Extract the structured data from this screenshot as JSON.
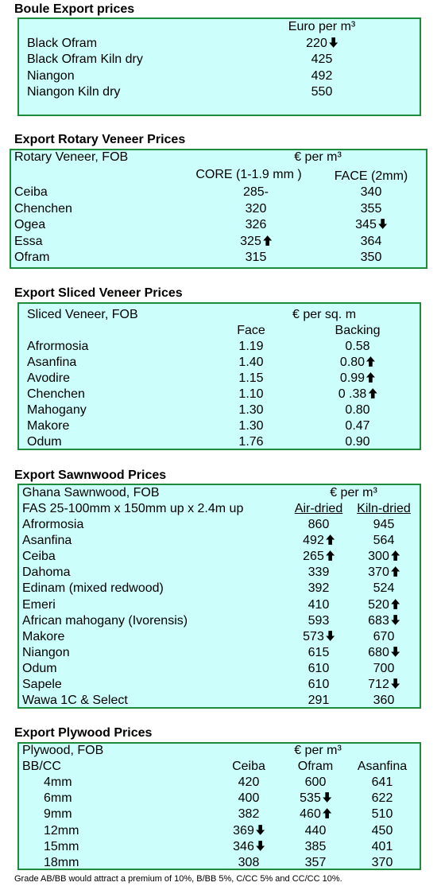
{
  "sections": [
    {
      "title": "Boule Export prices",
      "header": [
        "Euro per m³"
      ],
      "rows": [
        [
          "Black Ofram",
          {
            "text": "220",
            "trend": "down"
          }
        ],
        [
          "Black Ofram  Kiln dry",
          "425"
        ],
        [
          "Niangon",
          "492"
        ],
        [
          "Niangon Kiln dry",
          "550"
        ]
      ]
    },
    {
      "title": "Export Rotary Veneer Prices",
      "header": [
        "Rotary Veneer,  FOB",
        "€  per m³",
        "CORE (1-1.9 mm )",
        "FACE (2mm)"
      ],
      "rows": [
        [
          "Ceiba",
          "285-",
          "340"
        ],
        [
          "Chenchen",
          "320",
          "355"
        ],
        [
          "Ogea",
          "326",
          {
            "text": "345",
            "trend": "down"
          }
        ],
        [
          "Essa",
          {
            "text": "325",
            "trend": "up"
          },
          "364"
        ],
        [
          "Ofram",
          "315",
          "350"
        ]
      ]
    },
    {
      "title": "Export Sliced Veneer Prices",
      "header": [
        "Sliced Veneer, FOB",
        "€ per sq. m",
        "Face",
        "Backing"
      ],
      "rows": [
        [
          "Afrormosia",
          "1.19",
          "0.58"
        ],
        [
          "Asanfina",
          "1.40",
          {
            "text": "0.80",
            "trend": "up"
          }
        ],
        [
          "Avodire",
          "1.15",
          {
            "text": "0.99",
            "trend": "up"
          }
        ],
        [
          "Chenchen",
          "1.10",
          {
            "text": "0 .38",
            "trend": "up"
          }
        ],
        [
          "Mahogany",
          "1.30",
          "0.80"
        ],
        [
          "Makore",
          "1.30",
          "0.47"
        ],
        [
          "Odum",
          "1.76",
          "0.90"
        ]
      ]
    },
    {
      "title": "Export Sawnwood Prices",
      "header": [
        "Ghana Sawnwood, FOB",
        "€ per m³",
        "FAS 25-100mm x 150mm up x 2.4m up",
        "Air-dried",
        "Kiln-dried"
      ],
      "rows": [
        [
          "Afrormosia",
          "860",
          "945"
        ],
        [
          "Asanfina",
          {
            "text": "492",
            "trend": "up"
          },
          "564"
        ],
        [
          "Ceiba",
          {
            "text": "265",
            "trend": "up"
          },
          {
            "text": "300",
            "trend": "up"
          }
        ],
        [
          "Dahoma",
          "339",
          {
            "text": "370",
            "trend": "up"
          }
        ],
        [
          "Edinam (mixed redwood)",
          "392",
          "524"
        ],
        [
          "Emeri",
          "410",
          {
            "text": "520",
            "trend": "up"
          }
        ],
        [
          "African mahogany (Ivorensis)",
          "593",
          {
            "text": "683",
            "trend": "down"
          }
        ],
        [
          "Makore",
          {
            "text": "573",
            "trend": "down"
          },
          "670"
        ],
        [
          "Niangon",
          "615",
          {
            "text": "680",
            "trend": "down"
          }
        ],
        [
          "Odum",
          "610",
          "700"
        ],
        [
          "Sapele",
          "610",
          {
            "text": "712",
            "trend": "down"
          }
        ],
        [
          "Wawa 1C & Select",
          "291",
          "360"
        ]
      ]
    },
    {
      "title": "Export Plywood Prices",
      "header": [
        "Plywood, FOB",
        "€ per m³",
        "BB/CC",
        "Ceiba",
        "Ofram",
        "Asanfina"
      ],
      "rows": [
        [
          "4mm",
          "420",
          "600",
          "641"
        ],
        [
          "6mm",
          "400",
          {
            "text": "535",
            "trend": "down"
          },
          "622"
        ],
        [
          "9mm",
          "382",
          {
            "text": "460",
            "trend": "up"
          },
          "510"
        ],
        [
          "12mm",
          {
            "text": "369",
            "trend": "down"
          },
          "440",
          "450"
        ],
        [
          "15mm",
          {
            "text": "346",
            "trend": "down"
          },
          "385",
          "401"
        ],
        [
          "18mm",
          "308",
          "357",
          "370"
        ]
      ]
    }
  ],
  "footnote": "Grade AB/BB would attract a premium of 10%, B/BB 5%, C/CC 5% and CC/CC 10%."
}
